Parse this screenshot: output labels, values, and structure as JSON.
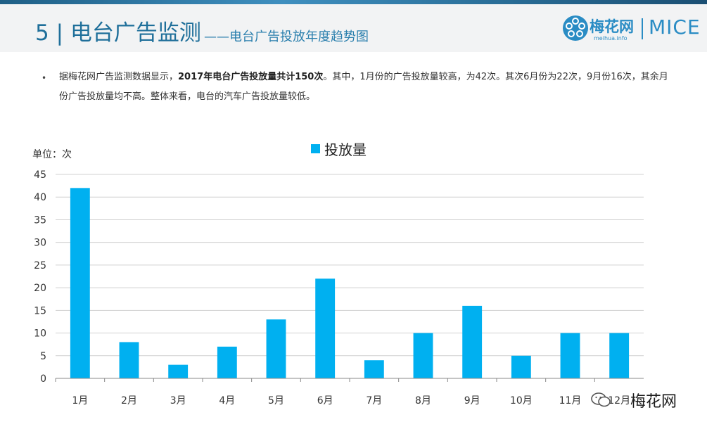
{
  "header": {
    "title_main": "5 | 电台广告监测",
    "title_sub": "——电台广告投放年度趋势图",
    "logo_name": "梅花网",
    "logo_url": "meihua.info",
    "logo_mice": "MICE"
  },
  "summary": {
    "part1": "据梅花网广告监测数据显示，",
    "bold": "2017年电台广告投放量共计150次",
    "part2": "。其中，1月份的广告投放量较高，为42次。其次6月份为22次，9月份16次，其余月份广告投放量均不高。整体来看，电台的汽车广告投放量较低。"
  },
  "watermark": {
    "text": "梅花网"
  },
  "colors": {
    "bar": "#00b0f0",
    "title": "#1f6f9a",
    "grid": "#d0d0d0"
  },
  "chart_data": {
    "type": "bar",
    "title": "",
    "ylabel": "单位：次",
    "xlabel": "",
    "categories": [
      "1月",
      "2月",
      "3月",
      "4月",
      "5月",
      "6月",
      "7月",
      "8月",
      "9月",
      "10月",
      "11月",
      "12月"
    ],
    "series": [
      {
        "name": "投放量",
        "values": [
          42,
          8,
          3,
          7,
          13,
          22,
          4,
          10,
          16,
          5,
          10,
          10
        ]
      }
    ],
    "ylim": [
      0,
      45
    ],
    "yticks": [
      0,
      5,
      10,
      15,
      20,
      25,
      30,
      35,
      40,
      45
    ],
    "grid": true,
    "legend": "top-center"
  }
}
